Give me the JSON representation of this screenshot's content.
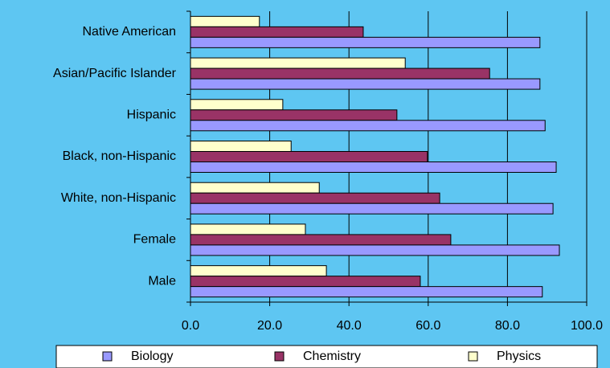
{
  "chart_data": {
    "type": "bar",
    "orientation": "horizontal",
    "categories": [
      "Native American",
      "Asian/Pacific Islander",
      "Hispanic",
      "Black, non-Hispanic",
      "White, non-Hispanic",
      "Female",
      "Male"
    ],
    "series": [
      {
        "name": "Biology",
        "color": "#9999ff",
        "values": [
          88.2,
          88.2,
          89.5,
          92.3,
          91.5,
          93.1,
          88.8
        ]
      },
      {
        "name": "Chemistry",
        "color": "#993366",
        "values": [
          43.6,
          75.5,
          52.1,
          59.8,
          62.9,
          65.7,
          58.0
        ]
      },
      {
        "name": "Physics",
        "color": "#ffffcc",
        "values": [
          17.4,
          54.2,
          23.3,
          25.4,
          32.5,
          29.0,
          34.3
        ]
      }
    ],
    "xlim": [
      0,
      100
    ],
    "xticks": [
      {
        "value": 0,
        "label": "0.0"
      },
      {
        "value": 20,
        "label": "20.0"
      },
      {
        "value": 40,
        "label": "40.0"
      },
      {
        "value": 60,
        "label": "60.0"
      },
      {
        "value": 80,
        "label": "80.0"
      },
      {
        "value": 100,
        "label": "100.0"
      }
    ],
    "grid": true,
    "legend": "bottom"
  }
}
